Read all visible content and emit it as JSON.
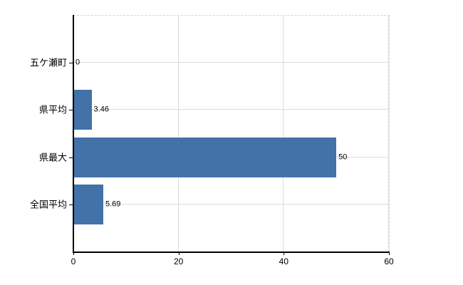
{
  "chart_data": {
    "type": "bar",
    "orientation": "horizontal",
    "categories": [
      "五ケ瀬町",
      "県平均",
      "県最大",
      "全国平均"
    ],
    "values": [
      0,
      3.46,
      50,
      5.69
    ],
    "value_labels": [
      "0",
      "3.46",
      "50",
      "5.69"
    ],
    "xlim": [
      0,
      60
    ],
    "x_ticks": [
      0,
      20,
      40,
      60
    ],
    "x_tick_labels": [
      "0",
      "20",
      "40",
      "60"
    ],
    "title": "",
    "xlabel": "",
    "ylabel": "",
    "legend": null,
    "grid": true,
    "colors": {
      "bar": "#4272a8",
      "gridline": "#d9ddd9",
      "plot_border": "#d4d4d4",
      "axis": "#000000",
      "text": "#000000",
      "background": "#ffffff"
    }
  }
}
